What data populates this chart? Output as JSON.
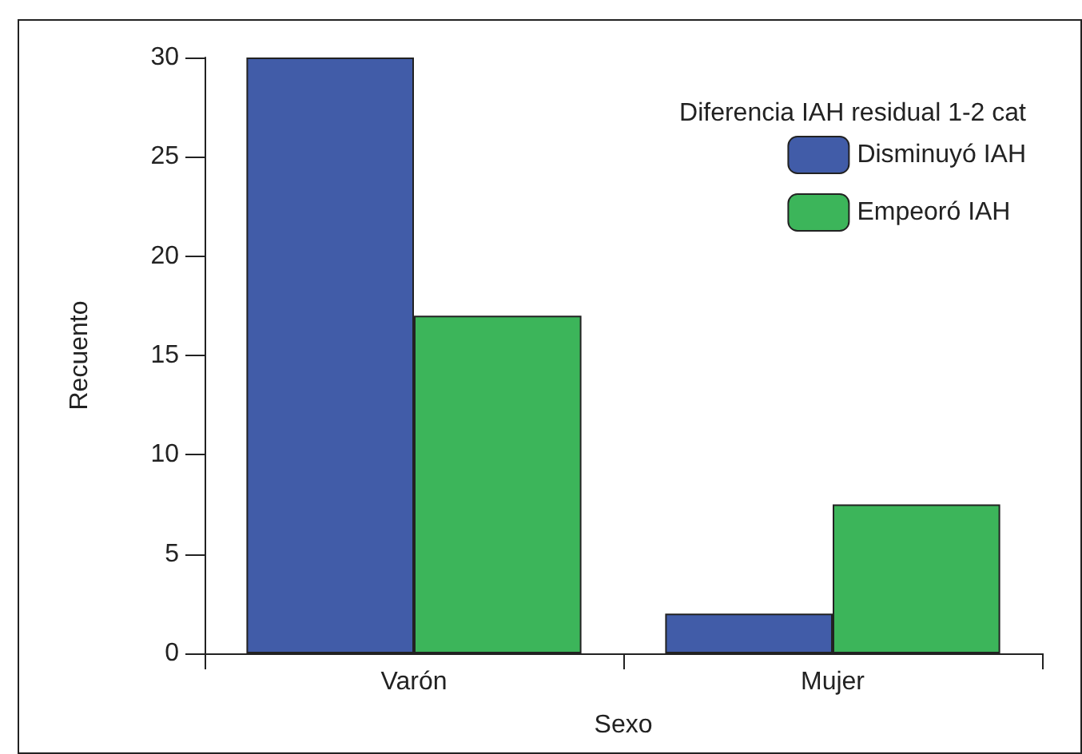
{
  "chart_data": {
    "type": "bar",
    "xlabel": "Sexo",
    "ylabel": "Recuento",
    "legend_title": "Diferencia IAH residual 1-2 cat",
    "categories": [
      "Varón",
      "Mujer"
    ],
    "series": [
      {
        "name": "Disminuyó IAH",
        "color": "#415ca8",
        "values": [
          30,
          2
        ]
      },
      {
        "name": "Empeoró IAH",
        "color": "#3cb55a",
        "values": [
          17,
          7.5
        ]
      }
    ],
    "ylim": [
      0,
      30
    ],
    "yticks": [
      0,
      5,
      10,
      15,
      20,
      25,
      30
    ],
    "grid": false,
    "legend": "top right"
  }
}
